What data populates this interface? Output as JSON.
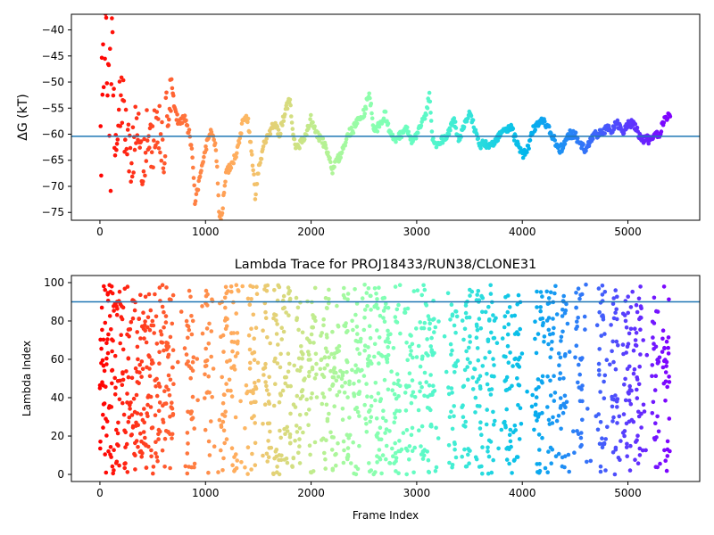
{
  "chart_data": [
    {
      "type": "scatter",
      "title": "",
      "xlabel": "",
      "ylabel": "ΔG (kT)",
      "xlim": [
        -270,
        5680
      ],
      "ylim": [
        -76.5,
        -37
      ],
      "xticks": [
        0,
        1000,
        2000,
        3000,
        4000,
        5000
      ],
      "yticks": [
        -75,
        -70,
        -65,
        -60,
        -55,
        -50,
        -45,
        -40
      ],
      "xtick_labels": [
        "0",
        "1000",
        "2000",
        "3000",
        "4000",
        "5000"
      ],
      "ytick_labels": [
        "−75",
        "−70",
        "−65",
        "−60",
        "−55",
        "−50",
        "−45",
        "−40"
      ],
      "colormap": "rainbow (color encodes frame index, red at start → purple at end)",
      "hline": {
        "y": -60.4,
        "color": "#1f77b4"
      },
      "n_frames": 5400,
      "trace_points": [
        [
          0,
          -40
        ],
        [
          20,
          -60
        ],
        [
          40,
          -46
        ],
        [
          60,
          -38
        ],
        [
          100,
          -58
        ],
        [
          120,
          -48
        ],
        [
          150,
          -62
        ],
        [
          200,
          -52
        ],
        [
          250,
          -60
        ],
        [
          300,
          -64
        ],
        [
          350,
          -58
        ],
        [
          400,
          -68
        ],
        [
          450,
          -60
        ],
        [
          500,
          -62
        ],
        [
          550,
          -58
        ],
        [
          600,
          -64
        ],
        [
          650,
          -53
        ],
        [
          700,
          -55
        ],
        [
          750,
          -58
        ],
        [
          800,
          -57
        ],
        [
          850,
          -60
        ],
        [
          880,
          -65
        ],
        [
          900,
          -73
        ],
        [
          950,
          -68
        ],
        [
          1000,
          -63
        ],
        [
          1050,
          -59
        ],
        [
          1100,
          -63
        ],
        [
          1130,
          -75
        ],
        [
          1150,
          -76
        ],
        [
          1200,
          -67
        ],
        [
          1250,
          -66
        ],
        [
          1300,
          -63
        ],
        [
          1350,
          -58
        ],
        [
          1400,
          -57
        ],
        [
          1450,
          -66
        ],
        [
          1470,
          -72
        ],
        [
          1500,
          -67
        ],
        [
          1550,
          -62
        ],
        [
          1600,
          -60
        ],
        [
          1650,
          -58
        ],
        [
          1700,
          -60
        ],
        [
          1750,
          -56
        ],
        [
          1800,
          -53
        ],
        [
          1830,
          -60
        ],
        [
          1850,
          -62
        ],
        [
          1900,
          -62
        ],
        [
          1950,
          -60
        ],
        [
          2000,
          -57
        ],
        [
          2050,
          -60
        ],
        [
          2100,
          -61
        ],
        [
          2150,
          -63
        ],
        [
          2200,
          -67
        ],
        [
          2250,
          -65
        ],
        [
          2300,
          -63
        ],
        [
          2350,
          -60
        ],
        [
          2400,
          -59
        ],
        [
          2450,
          -57
        ],
        [
          2500,
          -56
        ],
        [
          2550,
          -52
        ],
        [
          2600,
          -60
        ],
        [
          2650,
          -58
        ],
        [
          2700,
          -56
        ],
        [
          2750,
          -60
        ],
        [
          2800,
          -61
        ],
        [
          2850,
          -60
        ],
        [
          2900,
          -59
        ],
        [
          2950,
          -61
        ],
        [
          3000,
          -60
        ],
        [
          3050,
          -58
        ],
        [
          3100,
          -55
        ],
        [
          3120,
          -52
        ],
        [
          3150,
          -61
        ],
        [
          3200,
          -62
        ],
        [
          3300,
          -60
        ],
        [
          3350,
          -57
        ],
        [
          3400,
          -61
        ],
        [
          3450,
          -58
        ],
        [
          3500,
          -56
        ],
        [
          3550,
          -59
        ],
        [
          3600,
          -62
        ],
        [
          3650,
          -62
        ],
        [
          3700,
          -62
        ],
        [
          3750,
          -61
        ],
        [
          3800,
          -60
        ],
        [
          3850,
          -59
        ],
        [
          3900,
          -59
        ],
        [
          3950,
          -62
        ],
        [
          4000,
          -64
        ],
        [
          4050,
          -63
        ],
        [
          4100,
          -59
        ],
        [
          4150,
          -58
        ],
        [
          4200,
          -57
        ],
        [
          4250,
          -59
        ],
        [
          4300,
          -61
        ],
        [
          4350,
          -63
        ],
        [
          4400,
          -62
        ],
        [
          4450,
          -60
        ],
        [
          4500,
          -60
        ],
        [
          4550,
          -62
        ],
        [
          4600,
          -63
        ],
        [
          4650,
          -61
        ],
        [
          4700,
          -60
        ],
        [
          4750,
          -60
        ],
        [
          4800,
          -59
        ],
        [
          4850,
          -59
        ],
        [
          4900,
          -58
        ],
        [
          4950,
          -60
        ],
        [
          5000,
          -58
        ],
        [
          5050,
          -58
        ],
        [
          5100,
          -60
        ],
        [
          5150,
          -61
        ],
        [
          5200,
          -61
        ],
        [
          5250,
          -60
        ],
        [
          5300,
          -60
        ],
        [
          5350,
          -57
        ],
        [
          5400,
          -56
        ]
      ]
    },
    {
      "type": "scatter",
      "title": "Lambda Trace for PROJ18433/RUN38/CLONE31",
      "xlabel": "Frame Index",
      "ylabel": "Lambda Index",
      "xlim": [
        -270,
        5680
      ],
      "ylim": [
        -3.7,
        103.7
      ],
      "xticks": [
        0,
        1000,
        2000,
        3000,
        4000,
        5000
      ],
      "yticks": [
        0,
        20,
        40,
        60,
        80,
        100
      ],
      "xtick_labels": [
        "0",
        "1000",
        "2000",
        "3000",
        "4000",
        "5000"
      ],
      "ytick_labels": [
        "0",
        "20",
        "40",
        "60",
        "80",
        "100"
      ],
      "colormap": "rainbow (color encodes frame index, red at start → purple at end)",
      "hline": {
        "y": 90,
        "color": "#1f77b4"
      },
      "n_frames": 5400,
      "range_mode": "full 0–100 throughout, with vertical bands of dense sweeps",
      "band_centers": [
        170,
        280,
        400,
        520,
        650,
        860,
        1030,
        1180,
        1270,
        1450,
        1580,
        1680,
        1780,
        1890,
        2000,
        2140,
        2230,
        2330,
        2430,
        2540,
        2630,
        2710,
        2810,
        2930,
        3050,
        3130,
        3340,
        3470,
        3590,
        3700,
        3860,
        3950,
        4160,
        4270,
        4380,
        4540,
        4750,
        4880,
        5000,
        5100,
        5260,
        5360
      ]
    }
  ]
}
